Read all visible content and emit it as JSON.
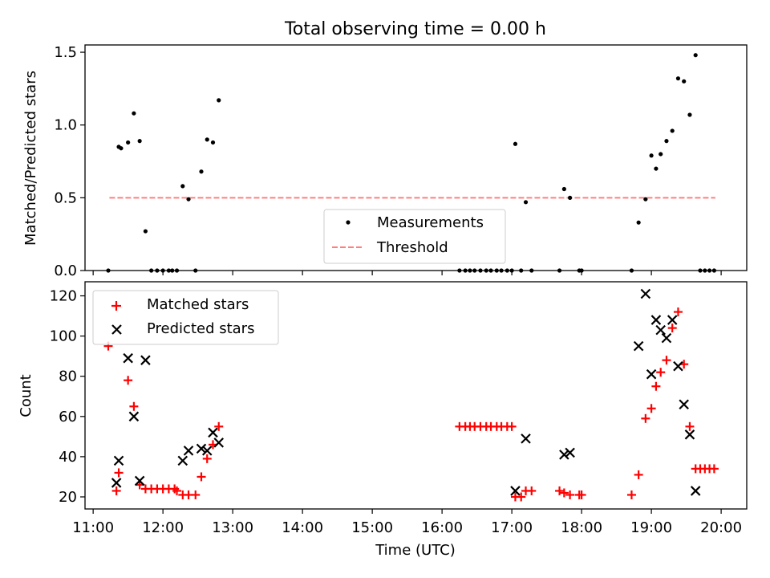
{
  "chart_data": [
    {
      "type": "scatter",
      "title": "Total observing time = 0.00 h",
      "xlabel": "",
      "ylabel": "Matched/Predicted stars",
      "xlim": [
        "10:53",
        "20:22"
      ],
      "ylim": [
        0,
        1.55
      ],
      "y_ticks": [
        "0.0",
        "0.5",
        "1.0",
        "1.5"
      ],
      "y_tick_values": [
        0,
        0.5,
        1.0,
        1.5
      ],
      "grid": false,
      "legend_placement": "bottom-center",
      "colors": {
        "measurements": "#000000",
        "threshold": "#ff7f7f"
      },
      "series": [
        {
          "name": "Measurements",
          "marker": "dot",
          "points": [
            [
              "11:13",
              0.0
            ],
            [
              "11:22",
              0.85
            ],
            [
              "11:24",
              0.84
            ],
            [
              "11:30",
              0.88
            ],
            [
              "11:35",
              1.08
            ],
            [
              "11:40",
              0.89
            ],
            [
              "11:45",
              0.27
            ],
            [
              "11:50",
              0.0
            ],
            [
              "11:55",
              0.0
            ],
            [
              "12:00",
              0.0
            ],
            [
              "12:05",
              0.0
            ],
            [
              "12:08",
              0.0
            ],
            [
              "12:12",
              0.0
            ],
            [
              "12:17",
              0.58
            ],
            [
              "12:22",
              0.49
            ],
            [
              "12:28",
              0.0
            ],
            [
              "12:33",
              0.68
            ],
            [
              "12:38",
              0.9
            ],
            [
              "12:43",
              0.88
            ],
            [
              "12:48",
              1.17
            ],
            [
              "16:15",
              0.0
            ],
            [
              "16:20",
              0.0
            ],
            [
              "16:24",
              0.0
            ],
            [
              "16:28",
              0.0
            ],
            [
              "16:33",
              0.0
            ],
            [
              "16:38",
              0.0
            ],
            [
              "16:42",
              0.0
            ],
            [
              "16:47",
              0.0
            ],
            [
              "16:51",
              0.0
            ],
            [
              "16:56",
              0.0
            ],
            [
              "17:00",
              0.0
            ],
            [
              "17:03",
              0.87
            ],
            [
              "17:08",
              0.0
            ],
            [
              "17:12",
              0.47
            ],
            [
              "17:17",
              0.0
            ],
            [
              "17:41",
              0.0
            ],
            [
              "17:45",
              0.56
            ],
            [
              "17:50",
              0.5
            ],
            [
              "17:58",
              0.0
            ],
            [
              "18:00",
              0.0
            ],
            [
              "18:43",
              0.0
            ],
            [
              "18:49",
              0.33
            ],
            [
              "18:55",
              0.49
            ],
            [
              "19:00",
              0.79
            ],
            [
              "19:04",
              0.7
            ],
            [
              "19:08",
              0.8
            ],
            [
              "19:13",
              0.89
            ],
            [
              "19:18",
              0.96
            ],
            [
              "19:23",
              1.32
            ],
            [
              "19:28",
              1.3
            ],
            [
              "19:33",
              1.07
            ],
            [
              "19:38",
              1.48
            ],
            [
              "19:42",
              0.0
            ],
            [
              "19:46",
              0.0
            ],
            [
              "19:50",
              0.0
            ],
            [
              "19:54",
              0.0
            ]
          ]
        },
        {
          "name": "Threshold",
          "marker": "dashed-line",
          "points": [
            [
              "11:14",
              0.5
            ],
            [
              "19:55",
              0.5
            ]
          ]
        }
      ]
    },
    {
      "type": "scatter",
      "title": "",
      "xlabel": "Time (UTC)",
      "ylabel": "Count",
      "xlim": [
        "10:53",
        "20:22"
      ],
      "ylim": [
        14,
        127
      ],
      "x_ticks": [
        "11:00",
        "12:00",
        "13:00",
        "14:00",
        "15:00",
        "16:00",
        "17:00",
        "18:00",
        "19:00",
        "20:00"
      ],
      "y_ticks": [
        "20",
        "40",
        "60",
        "80",
        "100",
        "120"
      ],
      "y_tick_values": [
        20,
        40,
        60,
        80,
        100,
        120
      ],
      "grid": false,
      "legend_placement": "top-left",
      "colors": {
        "matched": "#ff0000",
        "predicted": "#000000"
      },
      "series": [
        {
          "name": "Matched stars",
          "marker": "plus",
          "points": [
            [
              "11:13",
              95
            ],
            [
              "11:20",
              23
            ],
            [
              "11:22",
              32
            ],
            [
              "11:30",
              78
            ],
            [
              "11:35",
              65
            ],
            [
              "11:40",
              26
            ],
            [
              "11:45",
              24
            ],
            [
              "11:50",
              24
            ],
            [
              "11:55",
              24
            ],
            [
              "12:00",
              24
            ],
            [
              "12:05",
              24
            ],
            [
              "12:10",
              24
            ],
            [
              "12:12",
              23
            ],
            [
              "12:17",
              21
            ],
            [
              "12:22",
              21
            ],
            [
              "12:28",
              21
            ],
            [
              "12:33",
              30
            ],
            [
              "12:38",
              39
            ],
            [
              "12:43",
              46
            ],
            [
              "12:48",
              55
            ],
            [
              "16:15",
              55
            ],
            [
              "16:20",
              55
            ],
            [
              "16:24",
              55
            ],
            [
              "16:28",
              55
            ],
            [
              "16:33",
              55
            ],
            [
              "16:38",
              55
            ],
            [
              "16:42",
              55
            ],
            [
              "16:47",
              55
            ],
            [
              "16:51",
              55
            ],
            [
              "16:56",
              55
            ],
            [
              "17:00",
              55
            ],
            [
              "17:03",
              20
            ],
            [
              "17:08",
              20
            ],
            [
              "17:12",
              23
            ],
            [
              "17:17",
              23
            ],
            [
              "17:41",
              23
            ],
            [
              "17:45",
              22
            ],
            [
              "17:50",
              21
            ],
            [
              "17:58",
              21
            ],
            [
              "18:00",
              21
            ],
            [
              "18:43",
              21
            ],
            [
              "18:49",
              31
            ],
            [
              "18:55",
              59
            ],
            [
              "19:00",
              64
            ],
            [
              "19:04",
              75
            ],
            [
              "19:08",
              82
            ],
            [
              "19:13",
              88
            ],
            [
              "19:18",
              104
            ],
            [
              "19:23",
              112
            ],
            [
              "19:28",
              86
            ],
            [
              "19:33",
              55
            ],
            [
              "19:38",
              34
            ],
            [
              "19:42",
              34
            ],
            [
              "19:46",
              34
            ],
            [
              "19:50",
              34
            ],
            [
              "19:54",
              34
            ]
          ]
        },
        {
          "name": "Predicted stars",
          "marker": "x",
          "points": [
            [
              "11:20",
              27
            ],
            [
              "11:22",
              38
            ],
            [
              "11:30",
              89
            ],
            [
              "11:35",
              60
            ],
            [
              "11:40",
              28
            ],
            [
              "11:45",
              88
            ],
            [
              "12:17",
              38
            ],
            [
              "12:22",
              43
            ],
            [
              "12:33",
              44
            ],
            [
              "12:38",
              43
            ],
            [
              "12:43",
              52
            ],
            [
              "12:48",
              47
            ],
            [
              "17:03",
              23
            ],
            [
              "17:12",
              49
            ],
            [
              "17:45",
              41
            ],
            [
              "17:50",
              42
            ],
            [
              "18:49",
              95
            ],
            [
              "18:55",
              121
            ],
            [
              "19:00",
              81
            ],
            [
              "19:04",
              108
            ],
            [
              "19:08",
              103
            ],
            [
              "19:13",
              99
            ],
            [
              "19:18",
              108
            ],
            [
              "19:23",
              85
            ],
            [
              "19:28",
              66
            ],
            [
              "19:33",
              51
            ],
            [
              "19:38",
              23
            ]
          ]
        }
      ]
    }
  ]
}
